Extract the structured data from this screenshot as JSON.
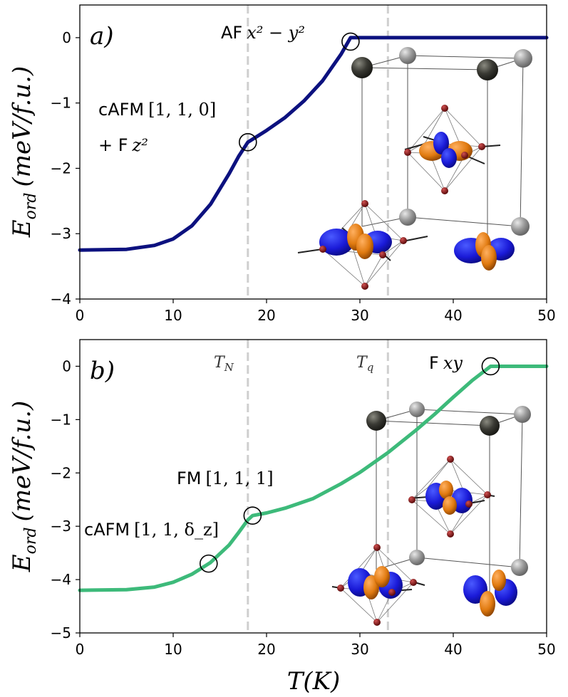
{
  "chart_data": [
    {
      "type": "line",
      "panel_label": "a)",
      "ylabel": "E_ord (meV/f.u.)",
      "ylabel_main": "E",
      "ylabel_sub": "ord",
      "ylabel_units": "(meV/f.u.)",
      "xlim": [
        0,
        50
      ],
      "ylim": [
        -4,
        0.5
      ],
      "x_ticks": [
        0,
        10,
        20,
        30,
        40,
        50
      ],
      "x_tick_labels": [
        "0",
        "10",
        "20",
        "30",
        "40",
        "50"
      ],
      "y_ticks": [
        0,
        -1,
        -2,
        -3,
        -4
      ],
      "y_tick_labels": [
        "0",
        "−1",
        "−2",
        "−3",
        "−4"
      ],
      "vlines": [
        18,
        33
      ],
      "series": [
        {
          "name": "E_ord",
          "color": "#0c117f",
          "x": [
            0,
            5,
            8,
            10,
            12,
            14,
            16,
            17,
            18,
            20,
            22,
            24,
            26,
            28,
            29,
            50
          ],
          "y": [
            -3.25,
            -3.24,
            -3.18,
            -3.08,
            -2.88,
            -2.55,
            -2.08,
            -1.82,
            -1.6,
            -1.42,
            -1.22,
            -0.97,
            -0.66,
            -0.25,
            0,
            0
          ]
        }
      ],
      "markers": [
        {
          "x": 18,
          "y": -1.6
        },
        {
          "x": 29,
          "y": -0.06
        }
      ],
      "annotations": [
        {
          "text_prefix": "AF",
          "text_math": "x² − y²"
        },
        {
          "text_prefix": "cAFM",
          "text_math": "[1, 1, 0]"
        },
        {
          "text_prefix": "+ F",
          "text_math": "z²"
        }
      ]
    },
    {
      "type": "line",
      "panel_label": "b)",
      "xlabel": "T(K)",
      "ylabel": "E_ord (meV/f.u.)",
      "ylabel_main": "E",
      "ylabel_sub": "ord",
      "ylabel_units": "(meV/f.u.)",
      "xlim": [
        0,
        50
      ],
      "ylim": [
        -5,
        0.5
      ],
      "x_ticks": [
        0,
        10,
        20,
        30,
        40,
        50
      ],
      "x_tick_labels": [
        "0",
        "10",
        "20",
        "30",
        "40",
        "50"
      ],
      "y_ticks": [
        0,
        -1,
        -2,
        -3,
        -4,
        -5
      ],
      "y_tick_labels": [
        "0",
        "−1",
        "−2",
        "−3",
        "−4",
        "−5"
      ],
      "vlines": [
        18,
        33
      ],
      "vline_labels": [
        {
          "main": "T",
          "sub": "N"
        },
        {
          "main": "T",
          "sub": "q"
        }
      ],
      "series": [
        {
          "name": "E_ord",
          "color": "#3dba7a",
          "x": [
            0,
            5,
            8,
            10,
            12,
            14,
            16,
            17,
            18,
            18.5,
            20,
            22,
            25,
            28,
            30,
            33,
            36,
            38,
            40,
            42,
            44,
            50
          ],
          "y": [
            -4.2,
            -4.19,
            -4.14,
            -4.05,
            -3.9,
            -3.68,
            -3.35,
            -3.12,
            -2.88,
            -2.8,
            -2.75,
            -2.66,
            -2.48,
            -2.2,
            -1.99,
            -1.62,
            -1.2,
            -0.9,
            -0.58,
            -0.27,
            0,
            0
          ]
        }
      ],
      "markers": [
        {
          "x": 13.8,
          "y": -3.7
        },
        {
          "x": 18.5,
          "y": -2.8
        },
        {
          "x": 44,
          "y": 0
        }
      ],
      "annotations": [
        {
          "text_prefix": "F",
          "text_math": "xy"
        },
        {
          "text_prefix": "FM",
          "text_math": "[1, 1, 1]"
        },
        {
          "text_prefix": "cAFM",
          "text_math": "[1, 1, δ_z]"
        }
      ]
    }
  ]
}
